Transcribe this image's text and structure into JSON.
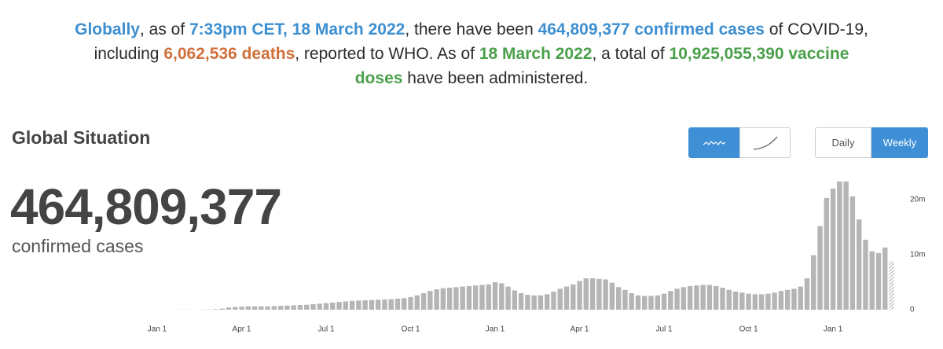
{
  "summary": [
    [
      {
        "text": "Globally",
        "style": "blue"
      },
      {
        "text": ", as of "
      },
      {
        "text": "7:33pm CET, 18 March 2022",
        "style": "blue"
      },
      {
        "text": ", there have been "
      },
      {
        "text": "464,809,377 confirmed cases",
        "style": "blue"
      },
      {
        "text": " of COVID-19,"
      }
    ],
    [
      {
        "text": "including "
      },
      {
        "text": "6,062,536 deaths",
        "style": "orange"
      },
      {
        "text": ", reported to WHO. As of "
      },
      {
        "text": "18 March 2022",
        "style": "green"
      },
      {
        "text": ", a total of "
      },
      {
        "text": "10,925,055,390 vaccine",
        "style": "green"
      }
    ],
    [
      {
        "text": "doses",
        "style": "green"
      },
      {
        "text": " have been administered."
      }
    ]
  ],
  "section_title": "Global Situation",
  "headline_number": "464,809,377",
  "headline_label": "confirmed cases",
  "frequency_buttons": [
    {
      "label": "Daily",
      "active": false
    },
    {
      "label": "Weekly",
      "active": true
    }
  ],
  "chart_data": {
    "type": "bar",
    "color": "#b5b5b5",
    "grid": false,
    "categories": [
      "Jan 1",
      null,
      null,
      null,
      null,
      null,
      null,
      null,
      null,
      null,
      null,
      null,
      null,
      "Apr 1",
      null,
      null,
      null,
      null,
      null,
      null,
      null,
      null,
      null,
      null,
      null,
      null,
      "Jul 1",
      null,
      null,
      null,
      null,
      null,
      null,
      null,
      null,
      null,
      null,
      null,
      null,
      "Oct 1",
      null,
      null,
      null,
      null,
      null,
      null,
      null,
      null,
      null,
      null,
      null,
      null,
      "Jan 1",
      null,
      null,
      null,
      null,
      null,
      null,
      null,
      null,
      null,
      null,
      null,
      null,
      "Apr 1",
      null,
      null,
      null,
      null,
      null,
      null,
      null,
      null,
      null,
      null,
      null,
      null,
      "Jul 1",
      null,
      null,
      null,
      null,
      null,
      null,
      null,
      null,
      null,
      null,
      null,
      null,
      "Oct 1",
      null,
      null,
      null,
      null,
      null,
      null,
      null,
      null,
      null,
      null,
      null,
      null,
      "Jan 1",
      null,
      null,
      null,
      null,
      null,
      null,
      null,
      null,
      null
    ],
    "values": [
      0,
      0,
      0.01,
      0.01,
      0.02,
      0.02,
      0.01,
      0.03,
      0.05,
      0.1,
      0.2,
      0.4,
      0.5,
      0.55,
      0.6,
      0.6,
      0.6,
      0.6,
      0.65,
      0.7,
      0.75,
      0.8,
      0.85,
      0.9,
      1.0,
      1.1,
      1.2,
      1.3,
      1.4,
      1.5,
      1.6,
      1.65,
      1.7,
      1.75,
      1.8,
      1.85,
      1.9,
      2.0,
      2.1,
      2.3,
      2.6,
      3.0,
      3.4,
      3.7,
      3.9,
      4.0,
      4.1,
      4.2,
      4.3,
      4.4,
      4.5,
      4.6,
      5.0,
      4.8,
      4.2,
      3.5,
      3.0,
      2.7,
      2.6,
      2.6,
      2.8,
      3.3,
      3.8,
      4.2,
      4.6,
      5.2,
      5.7,
      5.7,
      5.6,
      5.5,
      4.9,
      4.1,
      3.6,
      3.0,
      2.6,
      2.5,
      2.5,
      2.6,
      2.9,
      3.4,
      3.8,
      4.1,
      4.3,
      4.4,
      4.5,
      4.5,
      4.3,
      4.0,
      3.6,
      3.3,
      3.1,
      2.9,
      2.8,
      2.8,
      2.9,
      3.1,
      3.4,
      3.6,
      3.8,
      4.2,
      5.7,
      9.9,
      15.2,
      20.3,
      22.0,
      23.3,
      23.3,
      20.6,
      16.4,
      12.7,
      10.6,
      10.3,
      11.3,
      8.8
    ],
    "ylim": [
      0,
      24
    ],
    "yticks": [
      0,
      {
        "value": 10,
        "label": "10m"
      },
      {
        "value": 20,
        "label": "20m"
      }
    ]
  }
}
